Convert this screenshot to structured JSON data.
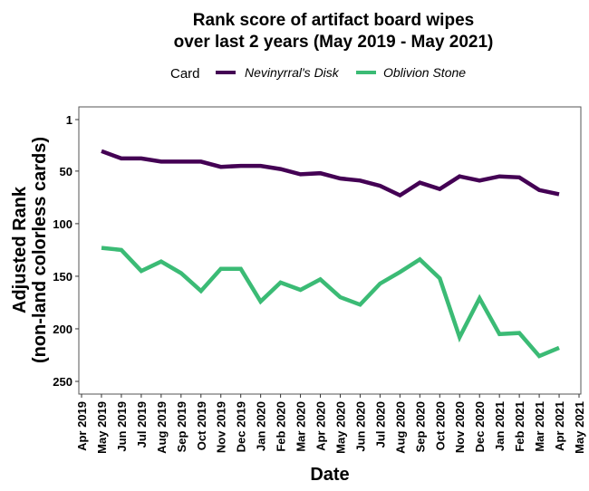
{
  "chart_data": {
    "type": "line",
    "title": [
      "Rank score of artifact board wipes",
      "over last 2 years (May 2019 - May 2021)"
    ],
    "xlabel": "Date",
    "ylabel": [
      "Adjusted Rank",
      "(non-land colorless cards)"
    ],
    "y_reversed": true,
    "ylim": [
      1,
      262
    ],
    "yticks": [
      1,
      50,
      100,
      150,
      200,
      250
    ],
    "xticks": [
      "Apr 2019",
      "May 2019",
      "Jun 2019",
      "Jul 2019",
      "Aug 2019",
      "Sep 2019",
      "Oct 2019",
      "Nov 2019",
      "Dec 2019",
      "Jan 2020",
      "Feb 2020",
      "Mar 2020",
      "Apr 2020",
      "May 2020",
      "Jun 2020",
      "Jul 2020",
      "Aug 2020",
      "Sep 2020",
      "Oct 2020",
      "Nov 2020",
      "Dec 2020",
      "Jan 2021",
      "Feb 2021",
      "Mar 2021",
      "Apr 2021",
      "May 2021"
    ],
    "x": [
      "May 2019",
      "Jun 2019",
      "Jul 2019",
      "Aug 2019",
      "Sep 2019",
      "Oct 2019",
      "Nov 2019",
      "Dec 2019",
      "Jan 2020",
      "Feb 2020",
      "Mar 2020",
      "Apr 2020",
      "May 2020",
      "Jun 2020",
      "Jul 2020",
      "Aug 2020",
      "Sep 2020",
      "Oct 2020",
      "Nov 2020",
      "Dec 2020",
      "Jan 2021",
      "Feb 2021",
      "Mar 2021",
      "Apr 2021"
    ],
    "legend": {
      "title": "Card",
      "position": "top"
    },
    "grid": false,
    "series": [
      {
        "name": "Nevinyrral's Disk",
        "color": "#440154",
        "values": [
          31,
          38,
          38,
          41,
          41,
          41,
          46,
          45,
          45,
          48,
          53,
          52,
          57,
          59,
          64,
          73,
          61,
          67,
          55,
          59,
          55,
          56,
          68,
          72
        ]
      },
      {
        "name": "Oblivion Stone",
        "color": "#3BBB75",
        "values": [
          123,
          125,
          145,
          136,
          147,
          164,
          143,
          143,
          174,
          156,
          163,
          153,
          170,
          177,
          157,
          146,
          134,
          152,
          208,
          171,
          205,
          204,
          226,
          218
        ]
      }
    ]
  }
}
